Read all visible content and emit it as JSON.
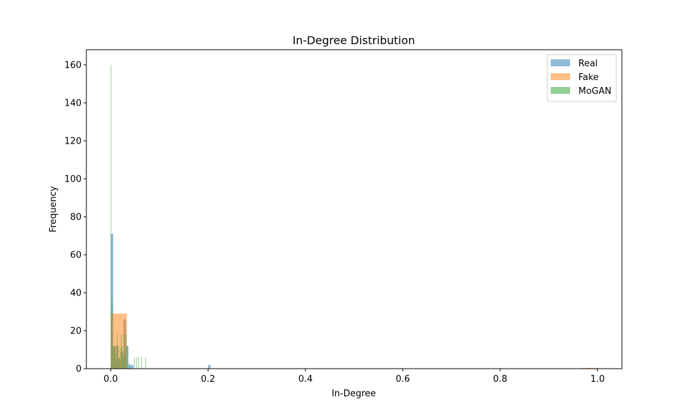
{
  "chart_data": {
    "type": "histogram",
    "title": "In-Degree Distribution",
    "xlabel": "In-Degree",
    "ylabel": "Frequency",
    "xlim": [
      -0.05,
      1.05
    ],
    "ylim": [
      0,
      168
    ],
    "xticks": [
      0.0,
      0.2,
      0.4,
      0.6,
      0.8,
      1.0
    ],
    "xtick_labels": [
      "0.0",
      "0.2",
      "0.4",
      "0.6",
      "0.8",
      "1.0"
    ],
    "yticks": [
      0,
      20,
      40,
      60,
      80,
      100,
      120,
      140,
      160
    ],
    "ytick_labels": [
      "0",
      "20",
      "40",
      "60",
      "80",
      "100",
      "120",
      "140",
      "160"
    ],
    "grid": false,
    "legend_position": "top-right",
    "bar_opacity": 0.5,
    "series": [
      {
        "name": "Real",
        "color": "#1f77b4",
        "bins": [
          {
            "x0": 0.0,
            "x1": 0.0052,
            "count": 71
          },
          {
            "x0": 0.0052,
            "x1": 0.0104,
            "count": 12
          },
          {
            "x0": 0.0104,
            "x1": 0.0156,
            "count": 12
          },
          {
            "x0": 0.0156,
            "x1": 0.0208,
            "count": 5
          },
          {
            "x0": 0.0208,
            "x1": 0.026,
            "count": 9
          },
          {
            "x0": 0.026,
            "x1": 0.0312,
            "count": 26
          },
          {
            "x0": 0.0312,
            "x1": 0.0364,
            "count": 12
          },
          {
            "x0": 0.0364,
            "x1": 0.0416,
            "count": 2
          },
          {
            "x0": 0.0416,
            "x1": 0.0468,
            "count": 2
          },
          {
            "x0": 0.2,
            "x1": 0.2052,
            "count": 2
          }
        ]
      },
      {
        "name": "Fake",
        "color": "#ff7f0e",
        "bins": [
          {
            "x0": 0.0,
            "x1": 0.0333,
            "count": 29
          },
          {
            "x0": 0.9667,
            "x1": 1.0,
            "count": 0.4
          }
        ]
      },
      {
        "name": "MoGAN",
        "color": "#2ca02c",
        "bins": [
          {
            "x0": 0.0,
            "x1": 0.0014,
            "count": 160
          },
          {
            "x0": 0.002,
            "x1": 0.0034,
            "count": 37
          },
          {
            "x0": 0.0042,
            "x1": 0.0056,
            "count": 12
          },
          {
            "x0": 0.0063,
            "x1": 0.0077,
            "count": 12
          },
          {
            "x0": 0.0083,
            "x1": 0.0097,
            "count": 8
          },
          {
            "x0": 0.0105,
            "x1": 0.0119,
            "count": 5
          },
          {
            "x0": 0.0125,
            "x1": 0.0139,
            "count": 18
          },
          {
            "x0": 0.0146,
            "x1": 0.016,
            "count": 12
          },
          {
            "x0": 0.0167,
            "x1": 0.0181,
            "count": 6
          },
          {
            "x0": 0.0188,
            "x1": 0.0202,
            "count": 11
          },
          {
            "x0": 0.0209,
            "x1": 0.0223,
            "count": 18
          },
          {
            "x0": 0.023,
            "x1": 0.0244,
            "count": 12
          },
          {
            "x0": 0.025,
            "x1": 0.0264,
            "count": 6
          },
          {
            "x0": 0.0271,
            "x1": 0.0285,
            "count": 18
          },
          {
            "x0": 0.0292,
            "x1": 0.0306,
            "count": 8
          },
          {
            "x0": 0.0313,
            "x1": 0.0327,
            "count": 18
          },
          {
            "x0": 0.0334,
            "x1": 0.0348,
            "count": 12
          },
          {
            "x0": 0.0375,
            "x1": 0.0389,
            "count": 3
          },
          {
            "x0": 0.0479,
            "x1": 0.0493,
            "count": 6
          },
          {
            "x0": 0.0521,
            "x1": 0.0535,
            "count": 6
          },
          {
            "x0": 0.0563,
            "x1": 0.0577,
            "count": 6
          },
          {
            "x0": 0.0625,
            "x1": 0.0639,
            "count": 6
          },
          {
            "x0": 0.0708,
            "x1": 0.0722,
            "count": 6
          }
        ]
      }
    ]
  }
}
